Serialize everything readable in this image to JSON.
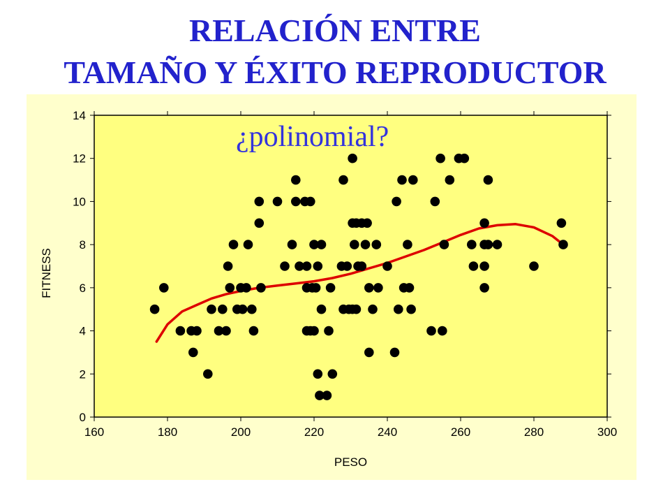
{
  "title_lines": [
    "RELACIÓN ENTRE",
    "TAMAÑO Y ÉXITO REPRODUCTOR"
  ],
  "colors": {
    "title": "#2222cc",
    "panel_bg": "#ffffcc",
    "plot_bg": "#ffff80",
    "points": "#000000",
    "curve": "#dd0000",
    "annotation": "#3333dd"
  },
  "chart_data": {
    "type": "scatter",
    "xlabel": "PESO",
    "ylabel": "FITNESS",
    "xlim": [
      160,
      300
    ],
    "ylim": [
      0,
      14
    ],
    "x_ticks": [
      160,
      180,
      200,
      220,
      240,
      260,
      280,
      300
    ],
    "y_ticks": [
      0,
      2,
      4,
      6,
      8,
      10,
      12,
      14
    ],
    "grid": false,
    "annotation": "¿polinomial?",
    "points": [
      [
        176.5,
        5
      ],
      [
        179,
        6
      ],
      [
        183.5,
        4
      ],
      [
        186.5,
        4
      ],
      [
        187,
        3
      ],
      [
        188,
        4
      ],
      [
        191,
        2
      ],
      [
        192,
        5
      ],
      [
        194,
        4
      ],
      [
        195,
        5
      ],
      [
        196,
        4
      ],
      [
        196.5,
        7
      ],
      [
        197,
        6
      ],
      [
        198,
        8
      ],
      [
        199,
        5
      ],
      [
        200,
        6
      ],
      [
        200.5,
        5
      ],
      [
        201.5,
        6
      ],
      [
        202,
        8
      ],
      [
        203,
        5
      ],
      [
        203.5,
        4
      ],
      [
        205,
        10
      ],
      [
        205,
        9
      ],
      [
        205.5,
        6
      ],
      [
        210,
        10
      ],
      [
        212,
        7
      ],
      [
        214,
        8
      ],
      [
        215,
        11
      ],
      [
        215,
        10
      ],
      [
        216,
        7
      ],
      [
        217.5,
        10
      ],
      [
        218,
        7
      ],
      [
        218,
        6
      ],
      [
        218,
        4
      ],
      [
        219,
        10
      ],
      [
        219,
        4
      ],
      [
        219.5,
        6
      ],
      [
        220,
        8
      ],
      [
        220,
        4
      ],
      [
        220.5,
        6
      ],
      [
        221,
        7
      ],
      [
        221,
        2
      ],
      [
        221.5,
        1
      ],
      [
        222,
        8
      ],
      [
        222,
        5
      ],
      [
        223.5,
        1
      ],
      [
        224,
        4
      ],
      [
        224.5,
        6
      ],
      [
        225,
        2
      ],
      [
        227.5,
        7
      ],
      [
        228,
        11
      ],
      [
        228,
        5
      ],
      [
        229,
        7
      ],
      [
        229.5,
        5
      ],
      [
        230.5,
        12
      ],
      [
        230.5,
        9
      ],
      [
        230.5,
        5
      ],
      [
        231,
        8
      ],
      [
        231.5,
        9
      ],
      [
        231.5,
        5
      ],
      [
        232,
        7
      ],
      [
        233,
        7
      ],
      [
        233,
        9
      ],
      [
        234,
        8
      ],
      [
        234.5,
        9
      ],
      [
        235,
        6
      ],
      [
        235,
        3
      ],
      [
        236,
        5
      ],
      [
        237,
        8
      ],
      [
        237.5,
        6
      ],
      [
        240,
        7
      ],
      [
        242,
        3
      ],
      [
        242.5,
        10
      ],
      [
        243,
        5
      ],
      [
        244,
        11
      ],
      [
        244.5,
        6
      ],
      [
        245.5,
        8
      ],
      [
        246,
        6
      ],
      [
        246.5,
        5
      ],
      [
        247,
        11
      ],
      [
        252,
        4
      ],
      [
        253,
        10
      ],
      [
        254.5,
        12
      ],
      [
        255,
        4
      ],
      [
        255.5,
        8
      ],
      [
        257,
        11
      ],
      [
        259.5,
        12
      ],
      [
        261,
        12
      ],
      [
        263,
        8
      ],
      [
        263.5,
        7
      ],
      [
        266.5,
        9
      ],
      [
        266.5,
        8
      ],
      [
        266.5,
        7
      ],
      [
        266.5,
        6
      ],
      [
        267.5,
        11
      ],
      [
        267.5,
        8
      ],
      [
        270,
        8
      ],
      [
        280,
        7
      ],
      [
        287.5,
        9
      ],
      [
        288,
        8
      ]
    ],
    "fit_curve": {
      "type": "polynomial",
      "x": [
        177,
        180,
        184,
        188,
        192,
        196,
        200,
        205,
        210,
        215,
        220,
        225,
        230,
        235,
        240,
        245,
        250,
        255,
        260,
        265,
        270,
        275,
        280,
        285,
        288
      ],
      "y": [
        3.5,
        4.3,
        4.9,
        5.2,
        5.5,
        5.7,
        5.85,
        6.0,
        6.1,
        6.2,
        6.3,
        6.45,
        6.65,
        6.9,
        7.15,
        7.45,
        7.75,
        8.1,
        8.45,
        8.75,
        8.9,
        8.95,
        8.8,
        8.4,
        8.0
      ]
    }
  }
}
